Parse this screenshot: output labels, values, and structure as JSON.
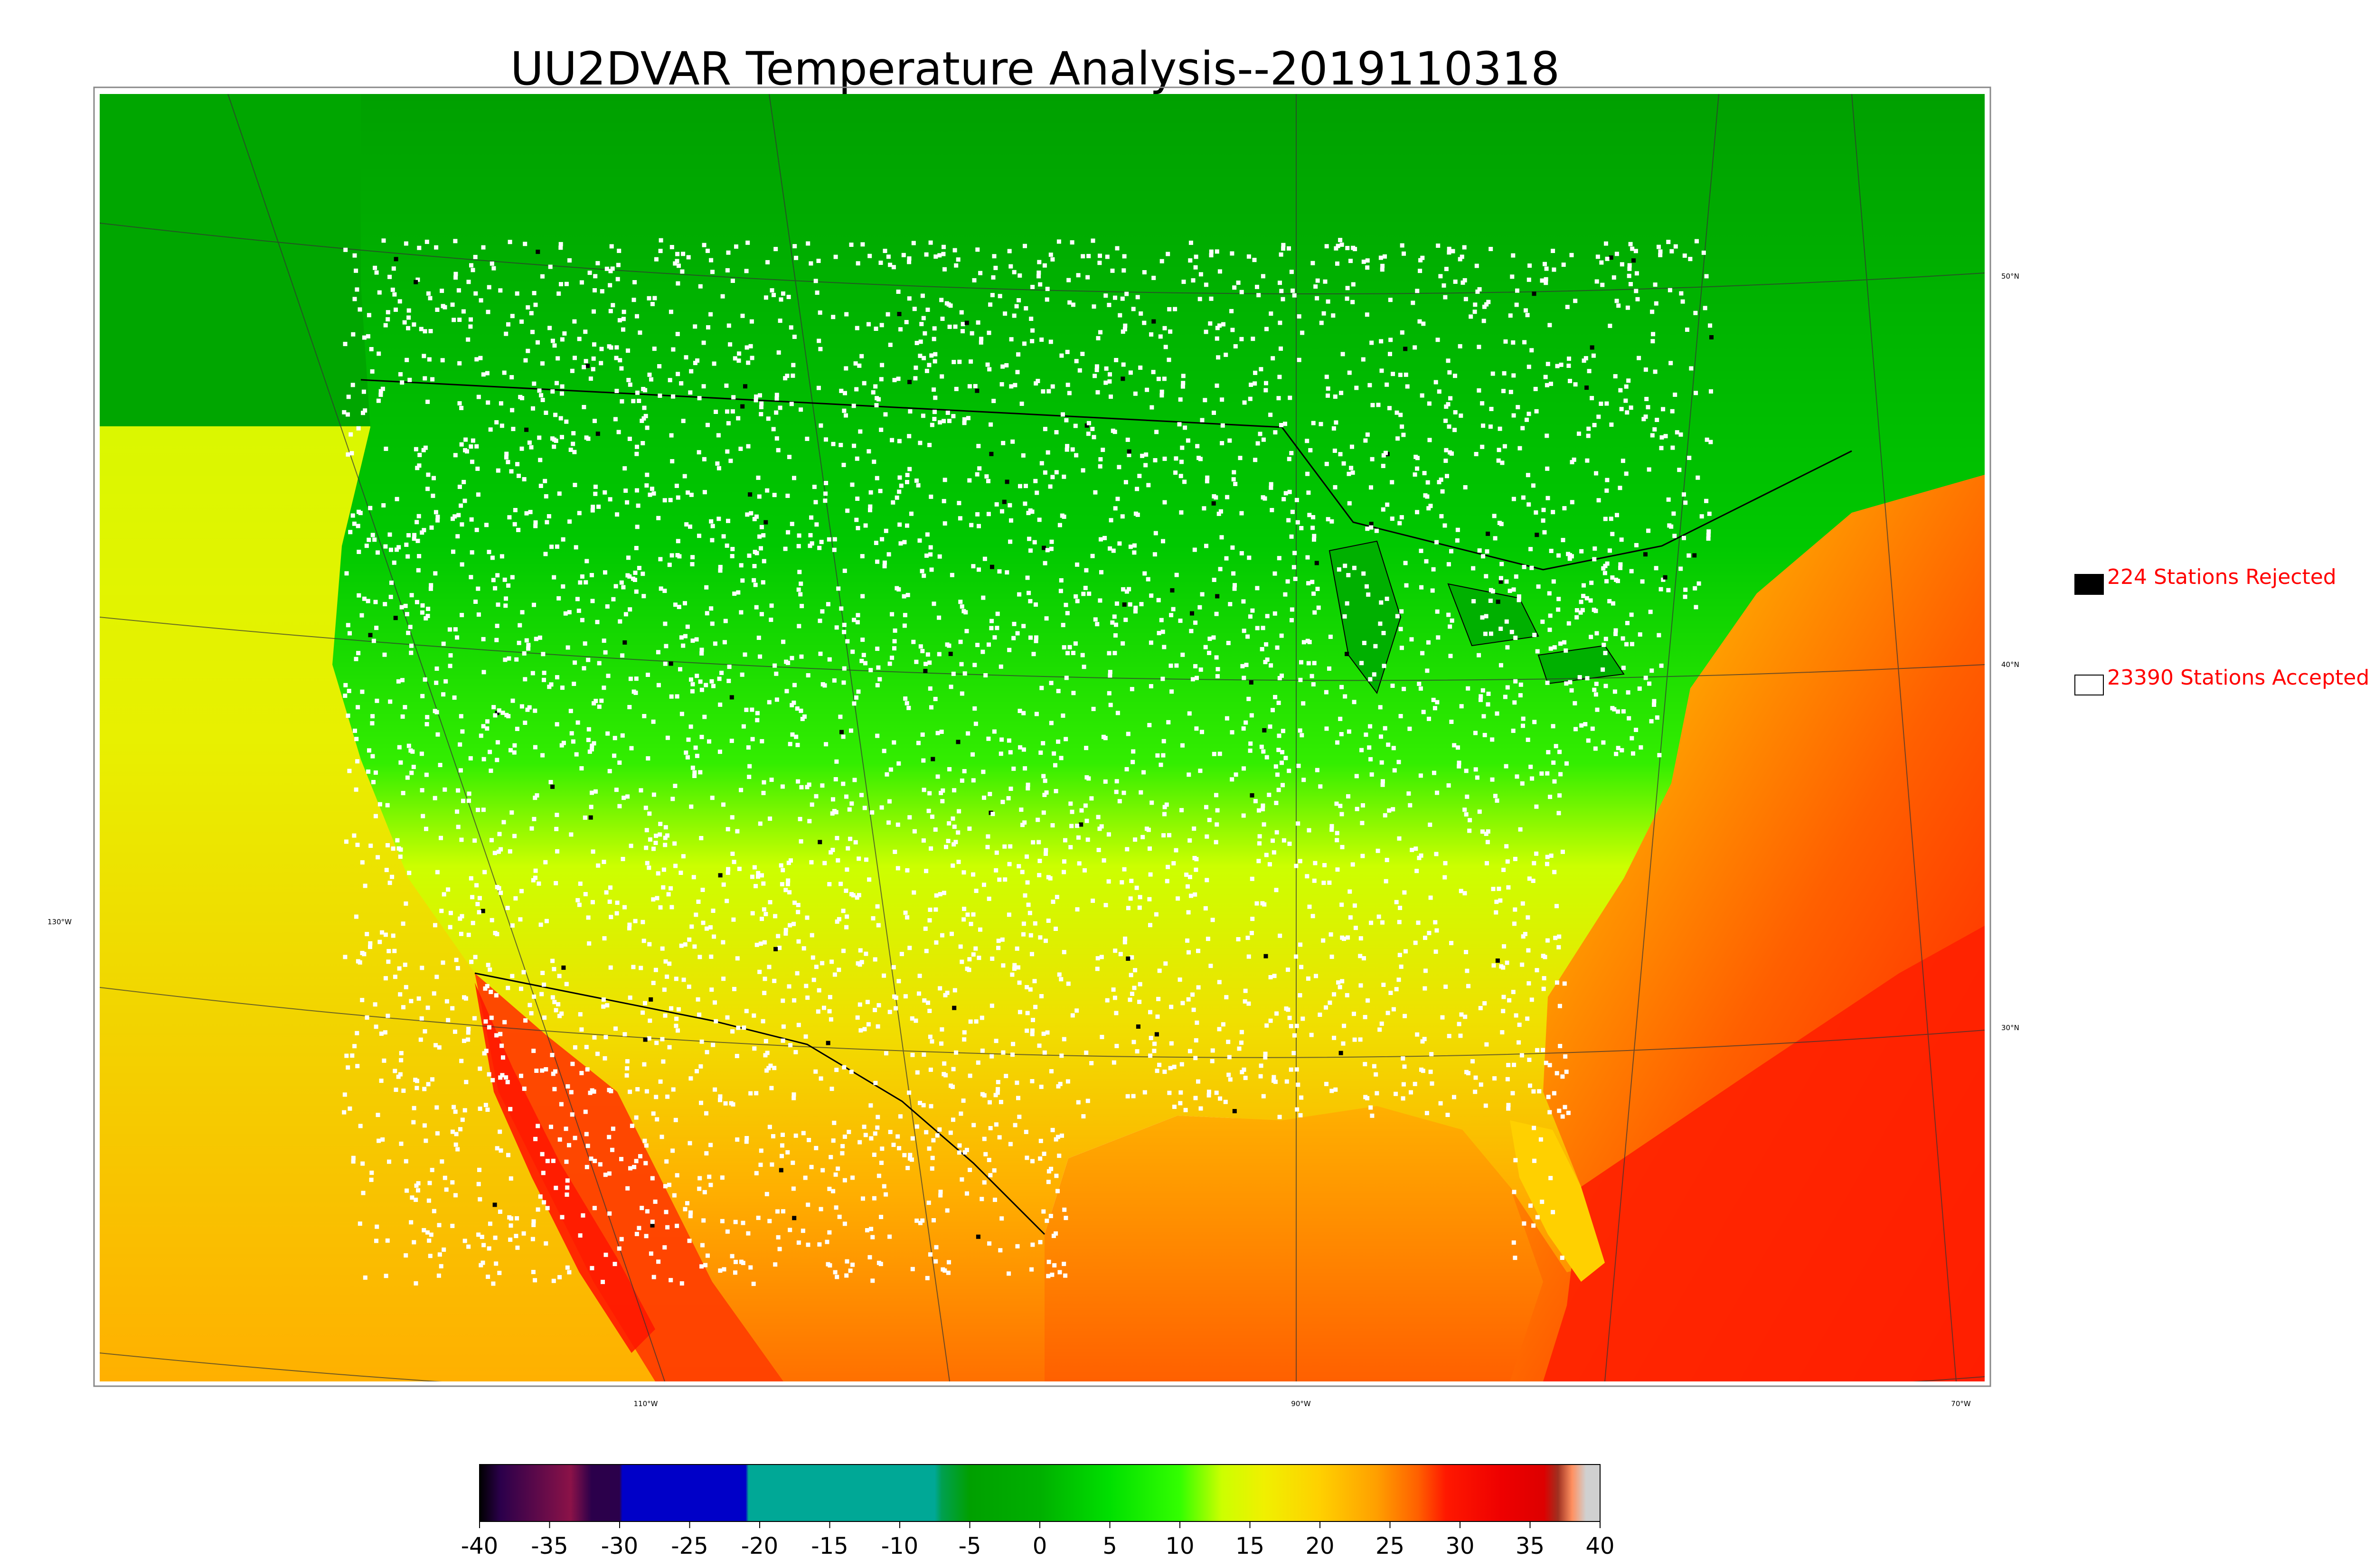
{
  "title": "UU2DVAR Temperature Analysis--2019110318",
  "legend": {
    "rejected": {
      "label": "224 Stations Rejected",
      "swatch_color": "#000000"
    },
    "accepted": {
      "label": "23390 Stations Accepted",
      "swatch_color": "#ffffff"
    }
  },
  "map": {
    "lon_labels": [
      "110°W",
      "90°W",
      "70°W"
    ],
    "lat_labels": [
      "50°N",
      "40°N",
      "30°N"
    ],
    "west_label": "130°W",
    "station_marker_colors": {
      "accepted": "#ffffff",
      "rejected": "#000000"
    }
  },
  "colorbar": {
    "min": -40,
    "max": 40,
    "tick_labels": [
      "-40",
      "-35",
      "-30",
      "-25",
      "-20",
      "-15",
      "-10",
      "-5",
      "0",
      "5",
      "10",
      "15",
      "20",
      "25",
      "30",
      "35",
      "40"
    ],
    "stops": [
      {
        "value": -40,
        "color": "#000000"
      },
      {
        "value": -38.5,
        "color": "#2b004b"
      },
      {
        "value": -33.5,
        "color": "#8b1248"
      },
      {
        "value": -32,
        "color": "#2b004b"
      },
      {
        "value": -30,
        "color": "#2b004b"
      },
      {
        "value": -29.8,
        "color": "#0000c8"
      },
      {
        "value": -21,
        "color": "#0000c8"
      },
      {
        "value": -20.8,
        "color": "#00a896"
      },
      {
        "value": -7.5,
        "color": "#00a896"
      },
      {
        "value": -7,
        "color": "#00a050"
      },
      {
        "value": -5,
        "color": "#00a000"
      },
      {
        "value": 0,
        "color": "#00b000"
      },
      {
        "value": 5,
        "color": "#00e000"
      },
      {
        "value": 10,
        "color": "#33ff00"
      },
      {
        "value": 13,
        "color": "#ccff00"
      },
      {
        "value": 16,
        "color": "#f0f000"
      },
      {
        "value": 20,
        "color": "#ffd000"
      },
      {
        "value": 24,
        "color": "#ffa000"
      },
      {
        "value": 27,
        "color": "#ff6000"
      },
      {
        "value": 29,
        "color": "#ff1800"
      },
      {
        "value": 33,
        "color": "#ee0000"
      },
      {
        "value": 36,
        "color": "#dd0000"
      },
      {
        "value": 37,
        "color": "#a03020"
      },
      {
        "value": 38,
        "color": "#ff9060"
      },
      {
        "value": 39,
        "color": "#d0d0d0"
      },
      {
        "value": 40,
        "color": "#d0d0d0"
      }
    ]
  }
}
